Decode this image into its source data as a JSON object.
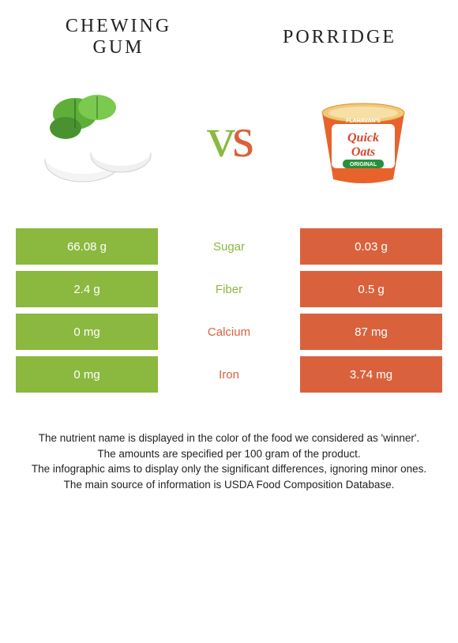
{
  "left_food": {
    "title": "Chewing gum",
    "color": "#8bb83f"
  },
  "right_food": {
    "title": "Porridge",
    "color": "#d9623c"
  },
  "vs_left_color": "#8bb83f",
  "vs_right_color": "#d9623c",
  "rows": [
    {
      "label": "Sugar",
      "left": "66.08 g",
      "right": "0.03 g",
      "winner": "left"
    },
    {
      "label": "Fiber",
      "left": "2.4 g",
      "right": "0.5 g",
      "winner": "left"
    },
    {
      "label": "Calcium",
      "left": "0 mg",
      "right": "87 mg",
      "winner": "right"
    },
    {
      "label": "Iron",
      "left": "0 mg",
      "right": "3.74 mg",
      "winner": "right"
    }
  ],
  "row_bg_left": "#8bb83f",
  "row_bg_right": "#d9623c",
  "row_label_fontsize": 15,
  "row_value_fontsize": 15,
  "footer_lines": [
    "The nutrient name is displayed in the color of the food we considered as 'winner'.",
    "The amounts are specified per 100 gram of the product.",
    "The infographic aims to display only the significant differences, ignoring minor ones.",
    "The main source of information is USDA Food Composition Database."
  ],
  "porridge_pack": {
    "brand": "FLAHAVAN'S",
    "product": "Quick Oats",
    "variant": "ORIGINAL"
  }
}
